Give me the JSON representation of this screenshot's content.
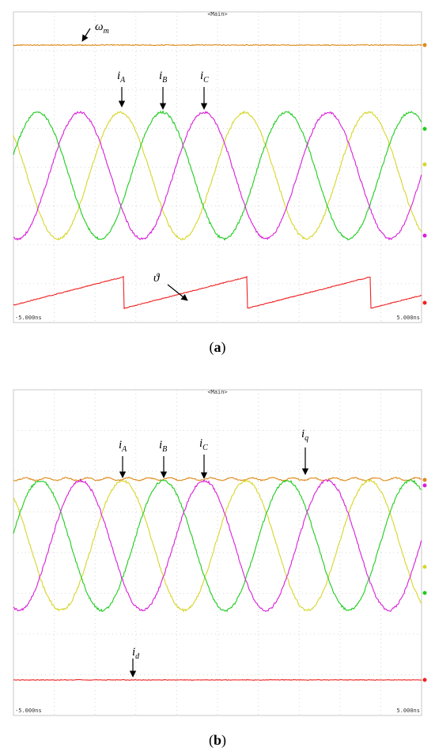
{
  "panels": [
    {
      "header": "<Main>",
      "time_start": "-5.000ns",
      "time_end": "5.000ns",
      "labels": [
        {
          "symbol": "ω",
          "sub": "m"
        },
        {
          "symbol": "i",
          "sub": "A"
        },
        {
          "symbol": "i",
          "sub": "B"
        },
        {
          "symbol": "i",
          "sub": "C"
        },
        {
          "symbol": "ϑ"
        }
      ],
      "caption": [
        "(",
        "a",
        ")"
      ]
    },
    {
      "header": "<Main>",
      "time_start": "-5.000ns",
      "time_end": "5.000ns",
      "labels": [
        {
          "symbol": "i",
          "sub": "A"
        },
        {
          "symbol": "i",
          "sub": "B"
        },
        {
          "symbol": "i",
          "sub": "C"
        },
        {
          "symbol": "i",
          "sub": "q"
        },
        {
          "symbol": "i",
          "sub": "d"
        }
      ],
      "caption": [
        "(",
        "b",
        ")"
      ]
    }
  ]
}
